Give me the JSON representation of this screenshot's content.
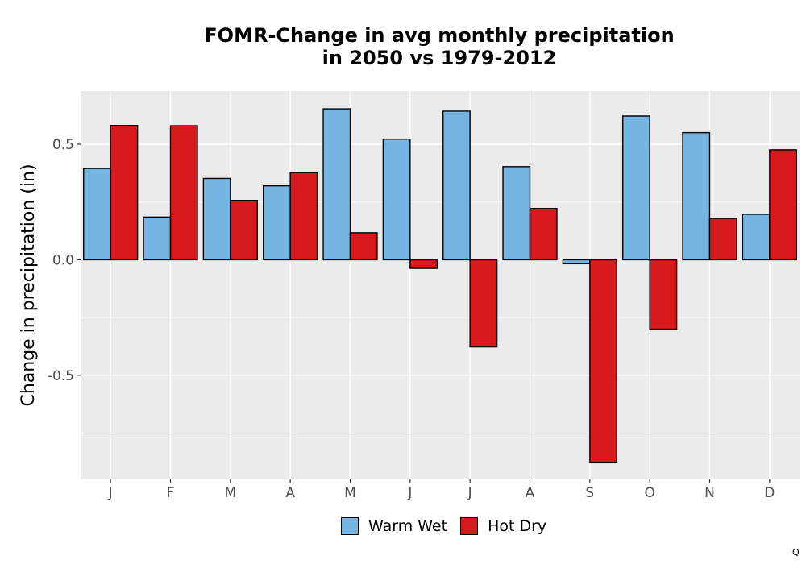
{
  "chart_data": {
    "type": "bar",
    "title_line1": "FOMR-Change in avg monthly precipitation",
    "title_line2": "in 2050 vs 1979-2012",
    "xlabel": "",
    "ylabel": "Change in precipitation (in)",
    "categories": [
      "J",
      "F",
      "M",
      "A",
      "M",
      "J",
      "J",
      "A",
      "S",
      "O",
      "N",
      "D"
    ],
    "series": [
      {
        "name": "Warm Wet",
        "color": "#74b5e2",
        "values": [
          0.395,
          0.185,
          0.352,
          0.32,
          0.653,
          0.522,
          0.643,
          0.403,
          -0.017,
          0.622,
          0.55,
          0.197
        ]
      },
      {
        "name": "Hot Dry",
        "color": "#d7191c",
        "values": [
          0.581,
          0.58,
          0.257,
          0.377,
          0.117,
          -0.037,
          -0.377,
          0.222,
          -0.878,
          -0.3,
          0.179,
          0.476
        ]
      }
    ],
    "ylim": [
      -0.95,
      0.73
    ],
    "yticks": [
      -0.5,
      0.0,
      0.5
    ],
    "ytick_labels": [
      "-0.5",
      "0.0",
      "0.5"
    ],
    "grid": true,
    "legend_position": "bottom"
  },
  "corner_mark": "Q"
}
